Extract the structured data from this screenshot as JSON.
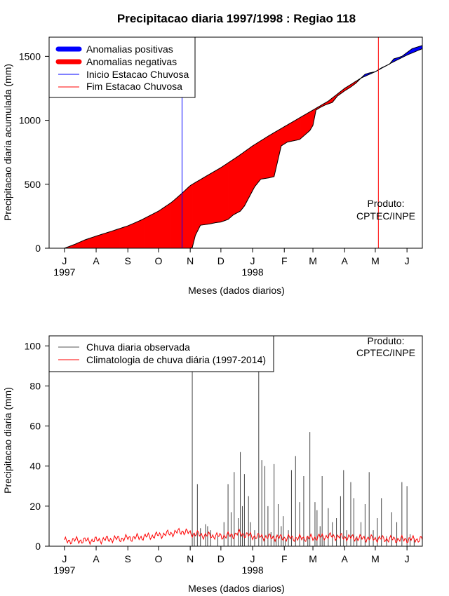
{
  "chart_data": [
    {
      "type": "area",
      "title": "Precipitacao diaria 1997/1998 : Regiao 118",
      "xlabel": "Meses (dados diarios)",
      "ylabel": "Precipitacao diaria acumulada (mm)",
      "ylim": [
        0,
        1650
      ],
      "yticks": [
        0,
        500,
        1000,
        1500
      ],
      "xlim_days": [
        -15,
        350
      ],
      "x_unit": "days since 1997-07-01",
      "month_ticks": [
        {
          "label": "J",
          "day": 0
        },
        {
          "label": "A",
          "day": 31
        },
        {
          "label": "S",
          "day": 62
        },
        {
          "label": "O",
          "day": 92
        },
        {
          "label": "N",
          "day": 123
        },
        {
          "label": "D",
          "day": 153
        },
        {
          "label": "J",
          "day": 184
        },
        {
          "label": "F",
          "day": 215
        },
        {
          "label": "M",
          "day": 243
        },
        {
          "label": "A",
          "day": 274
        },
        {
          "label": "M",
          "day": 304
        },
        {
          "label": "J",
          "day": 335
        }
      ],
      "year_labels": [
        {
          "label": "1997",
          "day": 0
        },
        {
          "label": "1998",
          "day": 184
        }
      ],
      "product_label": [
        "Produto:",
        "CPTEC/INPE"
      ],
      "legend": {
        "position": "top-left",
        "entries": [
          {
            "label": "Anomalias positivas",
            "color": "#0000ff",
            "style": "thick"
          },
          {
            "label": "Anomalias negativas",
            "color": "#ff0000",
            "style": "thick"
          },
          {
            "label": "Inicio Estacao Chuvosa",
            "color": "#0000ff",
            "style": "thin"
          },
          {
            "label": "Fim Estacao Chuvosa",
            "color": "#ff0000",
            "style": "thin"
          }
        ]
      },
      "rainy_season_start_day": 115,
      "rainy_season_end_day": 307,
      "climatology_cumulative": {
        "day": [
          0,
          10,
          20,
          31,
          45,
          62,
          75,
          92,
          105,
          115,
          123,
          140,
          153,
          170,
          184,
          200,
          215,
          243,
          258,
          274,
          290,
          304,
          320,
          335,
          350
        ],
        "value": [
          0,
          30,
          65,
          95,
          130,
          175,
          220,
          290,
          360,
          430,
          490,
          570,
          630,
          720,
          800,
          880,
          950,
          1080,
          1150,
          1250,
          1330,
          1380,
          1450,
          1510,
          1560
        ]
      },
      "observed_cumulative": {
        "day": [
          0,
          50,
          110,
          123,
          125,
          128,
          133,
          142,
          148,
          153,
          160,
          165,
          172,
          176,
          182,
          186,
          192,
          200,
          205,
          212,
          218,
          230,
          240,
          243,
          246,
          250,
          255,
          262,
          267,
          274,
          280,
          285,
          290,
          294,
          298,
          304,
          310,
          318,
          322,
          330,
          335,
          340,
          350
        ],
        "value": [
          0,
          0,
          0,
          0,
          5,
          100,
          180,
          190,
          200,
          205,
          225,
          260,
          290,
          330,
          420,
          480,
          540,
          550,
          560,
          800,
          830,
          850,
          920,
          960,
          1080,
          1100,
          1120,
          1140,
          1190,
          1230,
          1260,
          1290,
          1330,
          1360,
          1370,
          1380,
          1410,
          1440,
          1480,
          1500,
          1530,
          1560,
          1585
        ]
      }
    },
    {
      "type": "line",
      "xlabel": "Meses (dados diarios)",
      "ylabel": "Precipitacao diaria (mm)",
      "ylim": [
        0,
        105
      ],
      "yticks": [
        0,
        20,
        40,
        60,
        80,
        100
      ],
      "xlim_days": [
        -15,
        350
      ],
      "month_ticks": [
        {
          "label": "J",
          "day": 0
        },
        {
          "label": "A",
          "day": 31
        },
        {
          "label": "S",
          "day": 62
        },
        {
          "label": "O",
          "day": 92
        },
        {
          "label": "N",
          "day": 123
        },
        {
          "label": "D",
          "day": 153
        },
        {
          "label": "J",
          "day": 184
        },
        {
          "label": "F",
          "day": 215
        },
        {
          "label": "M",
          "day": 243
        },
        {
          "label": "A",
          "day": 274
        },
        {
          "label": "M",
          "day": 304
        },
        {
          "label": "J",
          "day": 335
        }
      ],
      "year_labels": [
        {
          "label": "1997",
          "day": 0
        },
        {
          "label": "1998",
          "day": 184
        }
      ],
      "product_label": [
        "Produto:",
        "CPTEC/INPE"
      ],
      "legend": {
        "position": "top-left",
        "entries": [
          {
            "label": "Chuva diaria observada",
            "color": "#555555"
          },
          {
            "label": "Climatologia de chuva diária (1997-2014)",
            "color": "#ff0000"
          }
        ]
      },
      "series": [
        {
          "name": "Chuva diaria observada",
          "type": "spikes",
          "day": [
            125,
            127,
            130,
            133,
            138,
            140,
            143,
            150,
            156,
            160,
            163,
            166,
            170,
            172,
            174,
            176,
            180,
            182,
            186,
            190,
            193,
            196,
            199,
            202,
            205,
            207,
            209,
            212,
            214,
            216,
            219,
            222,
            226,
            230,
            234,
            238,
            240,
            245,
            247,
            250,
            252,
            254,
            258,
            262,
            266,
            270,
            273,
            276,
            280,
            283,
            286,
            290,
            294,
            298,
            302,
            306,
            310,
            315,
            320,
            325,
            330,
            335,
            338,
            342
          ],
          "value": [
            88,
            6,
            31,
            9,
            11,
            10,
            8,
            5,
            12,
            31,
            17,
            37,
            14,
            47,
            20,
            36,
            25,
            12,
            8,
            88,
            43,
            40,
            20,
            7,
            41,
            5,
            21,
            10,
            15,
            3,
            8,
            38,
            45,
            22,
            35,
            5,
            57,
            22,
            18,
            10,
            35,
            4,
            19,
            12,
            14,
            25,
            38,
            8,
            32,
            24,
            5,
            12,
            21,
            37,
            8,
            14,
            24,
            5,
            17,
            12,
            32,
            30,
            6,
            4
          ]
        },
        {
          "name": "Climatologia de chuva diária (1997-2014)",
          "type": "line",
          "day": [
            0,
            10,
            20,
            31,
            45,
            62,
            75,
            92,
            105,
            115,
            123,
            135,
            153,
            165,
            170,
            184,
            200,
            215,
            230,
            243,
            258,
            274,
            290,
            304,
            320,
            335,
            350
          ],
          "value": [
            2.5,
            3,
            2.8,
            3,
            3.5,
            4,
            4.5,
            5.5,
            6.5,
            7.5,
            6.5,
            5.5,
            5,
            5.5,
            6.5,
            5,
            4.5,
            4.2,
            4,
            4.2,
            5,
            4.5,
            4,
            3.8,
            3.5,
            3.4,
            3.5
          ]
        }
      ]
    }
  ]
}
